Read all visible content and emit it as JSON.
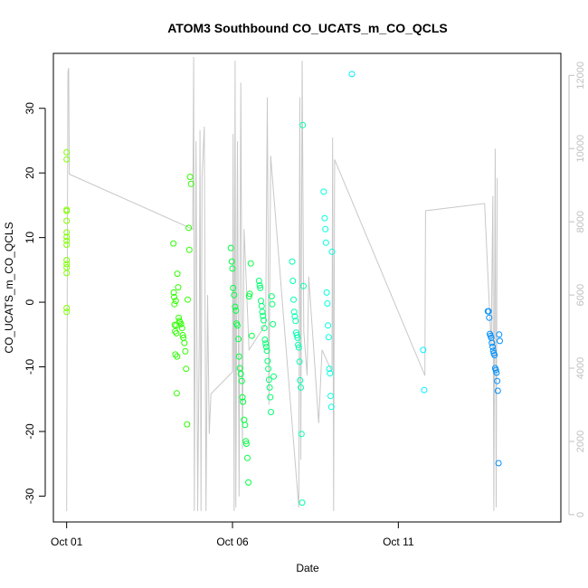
{
  "chart_data": {
    "type": "scatter",
    "title": "ATOM3 Southbound CO_UCATS_m_CO_QCLS",
    "xlabel": "Date",
    "ylabel": "CO_UCATS_m_CO_QCLS",
    "x_ticks": [
      {
        "day": 1,
        "label": "Oct 01"
      },
      {
        "day": 6,
        "label": "Oct 06"
      },
      {
        "day": 11,
        "label": "Oct 11"
      }
    ],
    "y_ticks": [
      -30,
      -20,
      -10,
      0,
      10,
      20,
      30
    ],
    "y_right_ticks": [
      0,
      2000,
      4000,
      6000,
      8000,
      10000,
      12000
    ],
    "xlim": [
      0.6,
      15.9
    ],
    "ylim": [
      -34,
      38.5
    ],
    "y_right_lim": [
      -200,
      12600
    ],
    "flight_profile": [
      [
        1.0,
        100
      ],
      [
        1.02,
        6800
      ],
      [
        1.04,
        12100
      ],
      [
        1.06,
        12200
      ],
      [
        1.08,
        9300
      ],
      [
        4.8,
        7800
      ],
      [
        4.83,
        12500
      ],
      [
        4.85,
        100
      ],
      [
        4.88,
        5900
      ],
      [
        4.9,
        10200
      ],
      [
        4.95,
        100
      ],
      [
        5.0,
        4900
      ],
      [
        5.02,
        10500
      ],
      [
        5.05,
        100
      ],
      [
        5.08,
        9200
      ],
      [
        5.15,
        10600
      ],
      [
        5.2,
        100
      ],
      [
        5.25,
        6000
      ],
      [
        5.3,
        2200
      ],
      [
        5.35,
        3300
      ],
      [
        6.0,
        3900
      ],
      [
        6.02,
        10400
      ],
      [
        6.05,
        100
      ],
      [
        6.08,
        12400
      ],
      [
        6.1,
        200
      ],
      [
        6.15,
        10200
      ],
      [
        6.2,
        500
      ],
      [
        6.25,
        11800
      ],
      [
        6.3,
        1800
      ],
      [
        6.35,
        7800
      ],
      [
        6.5,
        4500
      ],
      [
        7.0,
        5200
      ],
      [
        7.05,
        11400
      ],
      [
        7.1,
        3000
      ],
      [
        7.15,
        9800
      ],
      [
        8.0,
        200
      ],
      [
        8.03,
        11400
      ],
      [
        8.06,
        1500
      ],
      [
        8.1,
        12400
      ],
      [
        8.15,
        5000
      ],
      [
        8.25,
        3800
      ],
      [
        8.3,
        6500
      ],
      [
        8.6,
        2500
      ],
      [
        8.7,
        4500
      ],
      [
        9.0,
        3900
      ],
      [
        9.02,
        10300
      ],
      [
        9.05,
        100
      ],
      [
        9.08,
        9700
      ],
      [
        11.8,
        3800
      ],
      [
        11.82,
        8300
      ],
      [
        13.6,
        8500
      ],
      [
        13.8,
        4600
      ],
      [
        13.85,
        8700
      ],
      [
        13.88,
        100
      ],
      [
        13.92,
        10000
      ],
      [
        13.95,
        200
      ],
      [
        13.98,
        9200
      ]
    ],
    "series": [
      {
        "color": "#7fff00",
        "x": [
          1,
          1,
          1,
          1,
          1,
          1,
          1,
          1,
          1,
          1,
          1,
          1,
          1,
          1,
          1
        ],
        "y": [
          23.2,
          22.1,
          14.3,
          14.1,
          12.6,
          10.8,
          10.1,
          9.5,
          8.9,
          6.5,
          5.9,
          5.4,
          4.5,
          -0.9,
          -1.5
        ]
      },
      {
        "color": "#2eff00",
        "x": [
          4.22,
          4.23,
          4.24,
          4.25,
          4.26,
          4.27,
          4.28,
          4.29,
          4.3,
          4.31,
          4.32,
          4.33,
          4.34,
          4.36,
          4.38,
          4.4,
          4.42,
          4.45,
          4.48,
          4.5,
          4.52,
          4.55,
          4.58,
          4.6,
          4.63,
          4.65,
          4.68,
          4.7,
          4.72,
          4.75
        ],
        "y": [
          9.1,
          1.5,
          0.8,
          -0.3,
          -3.5,
          -4.5,
          -8.1,
          0.2,
          -3.6,
          -4.8,
          -14.1,
          -8.4,
          4.4,
          2.3,
          -2.4,
          -2.9,
          -3.1,
          -3.4,
          -4.0,
          -5.1,
          -5.5,
          -6.3,
          -7.6,
          -10.3,
          -18.9,
          0.4,
          11.5,
          8.1,
          19.4,
          18.3
        ]
      },
      {
        "color": "#00ff40",
        "x": [
          5.95,
          5.98,
          6.0,
          6.02,
          6.05,
          6.08,
          6.1,
          6.12,
          6.15,
          6.18,
          6.2,
          6.22,
          6.25,
          6.28,
          6.3,
          6.32,
          6.35,
          6.38,
          6.4,
          6.42,
          6.45,
          6.48,
          6.5,
          6.52,
          6.55,
          6.58
        ],
        "y": [
          8.4,
          6.3,
          5.2,
          2.2,
          1.1,
          -0.7,
          -1.3,
          -3.3,
          -3.6,
          -5.7,
          -8.4,
          -10.2,
          -11.1,
          -12.2,
          -14.7,
          -15.4,
          -18.2,
          -19.0,
          -21.5,
          -21.9,
          -24.1,
          -27.9,
          0.9,
          1.3,
          6.0,
          -5.2
        ]
      },
      {
        "color": "#00ff70",
        "x": [
          6.8,
          6.82,
          6.84,
          6.86,
          6.88,
          6.9,
          6.92,
          6.94,
          6.96,
          6.98,
          7.0,
          7.02,
          7.04,
          7.06,
          7.08,
          7.1,
          7.12,
          7.14,
          7.16,
          7.18,
          7.2,
          7.22,
          7.24
        ],
        "y": [
          3.3,
          2.6,
          2.2,
          0.2,
          -0.6,
          -1.5,
          -2.1,
          -2.8,
          -4.0,
          -5.8,
          -6.4,
          -6.9,
          -7.5,
          -9.1,
          -10.3,
          -12.0,
          -13.2,
          -14.7,
          -17.0,
          0.9,
          -0.3,
          -3.4,
          -11.5
        ]
      },
      {
        "color": "#00ffb0",
        "x": [
          7.8,
          7.82,
          7.84,
          7.86,
          7.88,
          7.9,
          7.92,
          7.94,
          7.96,
          7.98,
          8.0,
          8.02,
          8.04,
          8.06,
          8.08,
          8.1,
          8.12,
          8.14
        ],
        "y": [
          6.3,
          3.3,
          0.4,
          -1.5,
          -2.2,
          -2.9,
          -4.7,
          -5.1,
          -5.5,
          -6.6,
          -7.0,
          -9.2,
          -12.1,
          -13.2,
          -20.4,
          -31.0,
          27.4,
          2.5
        ]
      },
      {
        "color": "#00ffe0",
        "x": [
          8.75,
          8.78,
          8.8,
          8.82,
          8.84,
          8.86,
          8.88,
          8.9,
          8.92,
          8.94,
          8.96,
          8.98,
          9.0
        ],
        "y": [
          17.1,
          13.0,
          11.3,
          9.2,
          1.5,
          -0.2,
          -3.6,
          -5.4,
          -10.3,
          -11.0,
          -14.5,
          -16.2,
          7.8
        ]
      },
      {
        "color": "#00f0ff",
        "x": [
          9.6,
          11.75,
          11.78
        ],
        "y": [
          35.3,
          -7.4,
          -13.6
        ]
      },
      {
        "color": "#0090ff",
        "x": [
          13.7,
          13.72,
          13.74,
          13.76,
          13.78,
          13.8,
          13.82,
          13.84,
          13.86,
          13.88,
          13.9,
          13.92,
          13.94,
          13.96,
          13.98,
          14.0,
          14.02,
          14.04,
          14.06
        ],
        "y": [
          -1.4,
          -1.4,
          -2.4,
          -4.9,
          -5.2,
          -5.5,
          -6.3,
          -6.9,
          -7.5,
          -7.9,
          -8.2,
          -10.2,
          -10.5,
          -10.9,
          -12.2,
          -13.7,
          -24.9,
          -5.0,
          -6.0
        ]
      }
    ],
    "grid": false
  }
}
